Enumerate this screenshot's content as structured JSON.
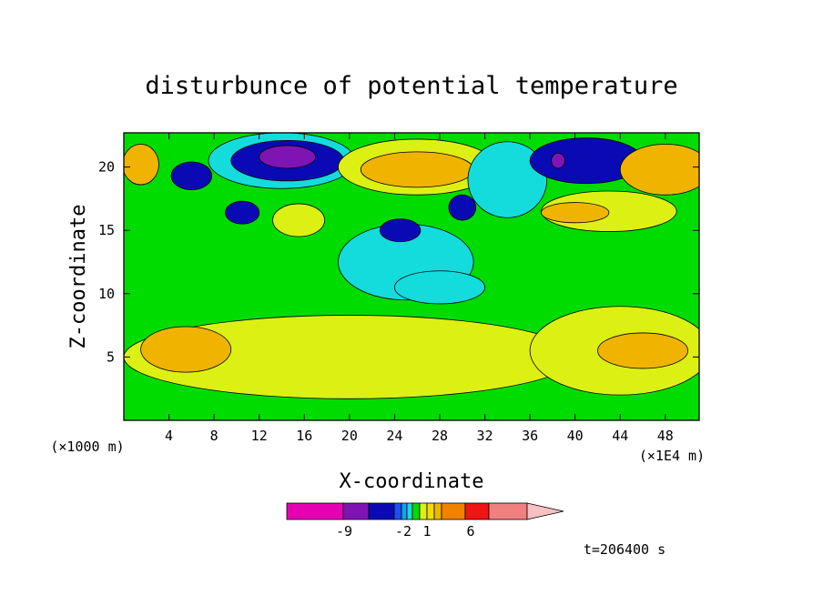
{
  "chart_data": {
    "type": "heatmap",
    "title": "disturbunce of potential temperature",
    "xlabel": "X-coordinate",
    "ylabel": "Z-coordinate",
    "x_unit_left": "(×1000 m)",
    "x_unit_right": "(×1E4 m)",
    "xticks": [
      4,
      8,
      12,
      16,
      20,
      24,
      28,
      32,
      36,
      40,
      44,
      48
    ],
    "yticks": [
      5,
      10,
      15,
      20
    ],
    "xlim": [
      0,
      51
    ],
    "ylim": [
      0,
      22.7
    ],
    "time_label": "t=206400 s",
    "colorbar": {
      "labels": [
        "-9",
        "-2",
        "1",
        "6"
      ],
      "colors": [
        "#e600b4",
        "#7f14b4",
        "#0a0ab4",
        "#1e50f0",
        "#14a0f0",
        "#14dcdc",
        "#00dc00",
        "#dcf014",
        "#f0dc00",
        "#f0b400",
        "#f08200",
        "#f01414",
        "#f08080",
        "#f8c0c0"
      ]
    },
    "regions": [
      {
        "value": "orange",
        "cx": 1.5,
        "cy": 20.2,
        "rx": 1.6,
        "ry": 1.6
      },
      {
        "value": "blue",
        "cx": 6,
        "cy": 19.3,
        "rx": 1.8,
        "ry": 1.1
      },
      {
        "value": "cyan",
        "cx": 14,
        "cy": 20.5,
        "rx": 6.5,
        "ry": 2.2
      },
      {
        "value": "blue",
        "cx": 14.5,
        "cy": 20.5,
        "rx": 5,
        "ry": 1.6
      },
      {
        "value": "purple",
        "cx": 14.5,
        "cy": 20.8,
        "rx": 2.5,
        "ry": 0.9
      },
      {
        "value": "yellow",
        "cx": 26,
        "cy": 20,
        "rx": 7,
        "ry": 2.2
      },
      {
        "value": "orange",
        "cx": 26,
        "cy": 19.8,
        "rx": 5,
        "ry": 1.4
      },
      {
        "value": "cyan",
        "cx": 34,
        "cy": 19,
        "rx": 3.5,
        "ry": 3
      },
      {
        "value": "blue",
        "cx": 41,
        "cy": 20.5,
        "rx": 5,
        "ry": 1.8
      },
      {
        "value": "purple",
        "cx": 38.5,
        "cy": 20.5,
        "rx": 0.6,
        "ry": 0.6
      },
      {
        "value": "orange",
        "cx": 48,
        "cy": 19.8,
        "rx": 4,
        "ry": 2
      },
      {
        "value": "yellow",
        "cx": 43,
        "cy": 16.5,
        "rx": 6,
        "ry": 1.6
      },
      {
        "value": "orange",
        "cx": 40,
        "cy": 16.4,
        "rx": 3,
        "ry": 0.8
      },
      {
        "value": "cyan",
        "cx": 25,
        "cy": 12.5,
        "rx": 6,
        "ry": 3
      },
      {
        "value": "cyan",
        "cx": 28,
        "cy": 10.5,
        "rx": 4,
        "ry": 1.3
      },
      {
        "value": "blue",
        "cx": 30,
        "cy": 16.8,
        "rx": 1.2,
        "ry": 1
      },
      {
        "value": "blue",
        "cx": 10.5,
        "cy": 16.4,
        "rx": 1.5,
        "ry": 0.9
      },
      {
        "value": "blue",
        "cx": 24.5,
        "cy": 15,
        "rx": 1.8,
        "ry": 0.9
      },
      {
        "value": "yellow",
        "cx": 15.5,
        "cy": 15.8,
        "rx": 2.3,
        "ry": 1.3
      },
      {
        "value": "yellow",
        "cx": 20,
        "cy": 5,
        "rx": 20,
        "ry": 3.3
      },
      {
        "value": "orange",
        "cx": 5.5,
        "cy": 5.6,
        "rx": 4,
        "ry": 1.8
      },
      {
        "value": "yellow",
        "cx": 44,
        "cy": 5.5,
        "rx": 8,
        "ry": 3.5
      },
      {
        "value": "orange",
        "cx": 46,
        "cy": 5.5,
        "rx": 4,
        "ry": 1.4
      }
    ]
  }
}
